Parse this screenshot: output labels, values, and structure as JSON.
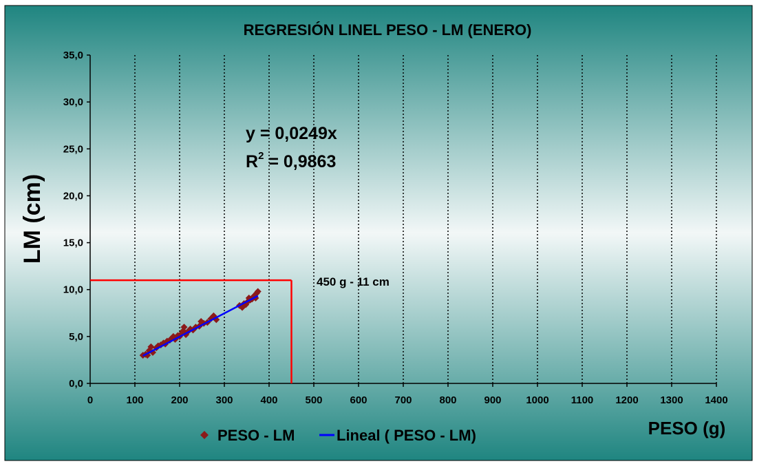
{
  "colors": {
    "bg_top": "#1f8580",
    "bg_mid": "#f2f7f7",
    "bg_bottom": "#1f8580",
    "marker": "#8b1a1a",
    "trendline": "#0000ff",
    "reference": "#ff0000"
  },
  "chart_data": {
    "type": "scatter",
    "title": "REGRESIÓN LINEL PESO - LM (ENERO)",
    "xlabel": "PESO (g)",
    "ylabel": "LM (cm)",
    "xlim": [
      0,
      1400
    ],
    "ylim": [
      0,
      35
    ],
    "x_ticks": [
      "0",
      "100",
      "200",
      "300",
      "400",
      "500",
      "600",
      "700",
      "800",
      "900",
      "1000",
      "1100",
      "1200",
      "1300",
      "1400"
    ],
    "y_ticks": [
      "0,0",
      "5,0",
      "10,0",
      "15,0",
      "20,0",
      "25,0",
      "30,0",
      "35,0"
    ],
    "grid": "vertical-dotted",
    "legend_position": "bottom",
    "series": [
      {
        "name": "PESO - LM",
        "marker": "diamond",
        "points": [
          [
            118,
            3.0
          ],
          [
            124,
            3.1
          ],
          [
            128,
            3.0
          ],
          [
            132,
            3.5
          ],
          [
            136,
            3.9
          ],
          [
            140,
            3.3
          ],
          [
            148,
            3.8
          ],
          [
            152,
            4.0
          ],
          [
            158,
            4.1
          ],
          [
            164,
            4.3
          ],
          [
            168,
            4.2
          ],
          [
            172,
            4.5
          ],
          [
            178,
            4.6
          ],
          [
            182,
            4.8
          ],
          [
            186,
            5.0
          ],
          [
            190,
            4.7
          ],
          [
            196,
            5.1
          ],
          [
            200,
            5.0
          ],
          [
            204,
            5.3
          ],
          [
            208,
            5.6
          ],
          [
            210,
            6.0
          ],
          [
            214,
            5.2
          ],
          [
            218,
            5.5
          ],
          [
            224,
            5.8
          ],
          [
            230,
            5.7
          ],
          [
            236,
            6.0
          ],
          [
            244,
            6.1
          ],
          [
            248,
            6.6
          ],
          [
            254,
            6.4
          ],
          [
            262,
            6.5
          ],
          [
            270,
            6.9
          ],
          [
            276,
            7.2
          ],
          [
            282,
            6.8
          ],
          [
            334,
            8.3
          ],
          [
            340,
            8.1
          ],
          [
            344,
            8.5
          ],
          [
            348,
            8.4
          ],
          [
            352,
            8.7
          ],
          [
            355,
            9.1
          ],
          [
            358,
            8.9
          ],
          [
            362,
            9.0
          ],
          [
            366,
            9.3
          ],
          [
            370,
            9.1
          ],
          [
            372,
            9.6
          ],
          [
            375,
            9.8
          ]
        ]
      },
      {
        "name": "Lineal ( PESO - LM)",
        "type": "line",
        "points": [
          [
            118,
            2.94
          ],
          [
            375,
            9.34
          ]
        ]
      }
    ],
    "annotations": {
      "equation": "y = 0,0249x",
      "r2_label": "R",
      "r2_sup": "2",
      "r2_value": " = 0,9863",
      "reference_label": "450 g - 11 cm",
      "reference_point": [
        450,
        11
      ]
    }
  }
}
